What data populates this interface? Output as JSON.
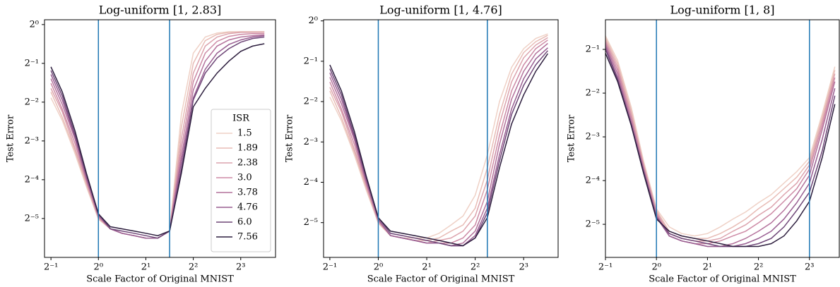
{
  "chart_data": [
    {
      "type": "line",
      "title": "Log-uniform [1, 2.83]",
      "xlabel": "Scale Factor of Original MNIST",
      "ylabel": "Test Error",
      "xscale": "log2",
      "yscale": "log2",
      "xlim": [
        0.455,
        13.3
      ],
      "ylim": [
        0.0156,
        1.09
      ],
      "xticks": [
        {
          "value": 0.5,
          "label": "2⁻¹"
        },
        {
          "value": 1,
          "label": "2⁰"
        },
        {
          "value": 2,
          "label": "2¹"
        },
        {
          "value": 4,
          "label": "2²"
        },
        {
          "value": 8,
          "label": "2³"
        }
      ],
      "yticks": [
        {
          "value": 1,
          "label": "2⁰"
        },
        {
          "value": 0.5,
          "label": "2⁻¹"
        },
        {
          "value": 0.25,
          "label": "2⁻²"
        },
        {
          "value": 0.125,
          "label": "2⁻³"
        },
        {
          "value": 0.0625,
          "label": "2⁻⁴"
        },
        {
          "value": 0.03125,
          "label": "2⁻⁵"
        }
      ],
      "vlines": [
        1,
        2.83
      ],
      "vline_color": "#1f77b4",
      "legend": {
        "title": "ISR",
        "loc": "center right"
      },
      "x": [
        0.5,
        0.59,
        0.71,
        0.84,
        1,
        1.19,
        1.41,
        1.68,
        2,
        2.38,
        2.83,
        3.36,
        4,
        4.76,
        5.66,
        6.73,
        8,
        9.51,
        11.3
      ],
      "series": [
        {
          "name": "1.5",
          "color": "#efd1c6",
          "values": [
            0.27,
            0.18,
            0.1,
            0.055,
            0.031,
            0.026,
            0.024,
            0.023,
            0.022,
            0.022,
            0.025,
            0.2,
            0.6,
            0.8,
            0.86,
            0.88,
            0.88,
            0.88,
            0.88
          ]
        },
        {
          "name": "1.89",
          "color": "#e8bcb6",
          "values": [
            0.3,
            0.19,
            0.105,
            0.057,
            0.031,
            0.026,
            0.024,
            0.023,
            0.022,
            0.022,
            0.025,
            0.16,
            0.5,
            0.75,
            0.84,
            0.87,
            0.88,
            0.88,
            0.88
          ]
        },
        {
          "name": "2.38",
          "color": "#dca3ad",
          "values": [
            0.32,
            0.21,
            0.11,
            0.059,
            0.032,
            0.026,
            0.024,
            0.023,
            0.022,
            0.022,
            0.025,
            0.13,
            0.42,
            0.68,
            0.8,
            0.85,
            0.87,
            0.87,
            0.87
          ]
        },
        {
          "name": "3.0",
          "color": "#cd8aa5",
          "values": [
            0.35,
            0.22,
            0.12,
            0.061,
            0.032,
            0.026,
            0.024,
            0.023,
            0.022,
            0.022,
            0.025,
            0.11,
            0.36,
            0.6,
            0.74,
            0.81,
            0.84,
            0.85,
            0.85
          ]
        },
        {
          "name": "3.78",
          "color": "#b4729c",
          "values": [
            0.38,
            0.24,
            0.13,
            0.063,
            0.033,
            0.026,
            0.024,
            0.023,
            0.022,
            0.022,
            0.025,
            0.095,
            0.31,
            0.52,
            0.68,
            0.76,
            0.8,
            0.82,
            0.83
          ]
        },
        {
          "name": "4.76",
          "color": "#985d91",
          "values": [
            0.41,
            0.26,
            0.135,
            0.065,
            0.033,
            0.026,
            0.024,
            0.023,
            0.022,
            0.022,
            0.025,
            0.085,
            0.27,
            0.45,
            0.6,
            0.7,
            0.76,
            0.8,
            0.82
          ]
        },
        {
          "name": "6.0",
          "color": "#6e4677",
          "values": [
            0.44,
            0.28,
            0.14,
            0.068,
            0.034,
            0.026,
            0.025,
            0.024,
            0.023,
            0.022,
            0.025,
            0.075,
            0.26,
            0.42,
            0.55,
            0.65,
            0.73,
            0.78,
            0.8
          ]
        },
        {
          "name": "7.56",
          "color": "#2d1e3e",
          "values": [
            0.47,
            0.3,
            0.15,
            0.07,
            0.034,
            0.027,
            0.026,
            0.025,
            0.024,
            0.023,
            0.025,
            0.07,
            0.23,
            0.32,
            0.42,
            0.52,
            0.62,
            0.68,
            0.71
          ]
        }
      ]
    },
    {
      "type": "line",
      "title": "Log-uniform [1, 4.76]",
      "xlabel": "Scale Factor of Original MNIST",
      "ylabel": "Test Error",
      "xscale": "log2",
      "yscale": "log2",
      "xlim": [
        0.457,
        13.1
      ],
      "ylim": [
        0.0172,
        1.02
      ],
      "xticks": [
        {
          "value": 0.5,
          "label": "2⁻¹"
        },
        {
          "value": 1,
          "label": "2⁰"
        },
        {
          "value": 2,
          "label": "2¹"
        },
        {
          "value": 4,
          "label": "2²"
        },
        {
          "value": 8,
          "label": "2³"
        }
      ],
      "yticks": [
        {
          "value": 1,
          "label": "2⁰"
        },
        {
          "value": 0.5,
          "label": "2⁻¹"
        },
        {
          "value": 0.25,
          "label": "2⁻²"
        },
        {
          "value": 0.125,
          "label": "2⁻³"
        },
        {
          "value": 0.0625,
          "label": "2⁻⁴"
        },
        {
          "value": 0.03125,
          "label": "2⁻⁵"
        }
      ],
      "vlines": [
        1,
        4.76
      ],
      "vline_color": "#1f77b4",
      "x": [
        0.5,
        0.59,
        0.71,
        0.84,
        1,
        1.19,
        1.41,
        1.68,
        2,
        2.38,
        2.83,
        3.36,
        4,
        4.76,
        5.66,
        6.73,
        8,
        9.51,
        11.3
      ],
      "series": [
        {
          "color": "#efd1c6",
          "values": [
            0.27,
            0.18,
            0.1,
            0.055,
            0.031,
            0.025,
            0.024,
            0.024,
            0.024,
            0.026,
            0.03,
            0.035,
            0.05,
            0.1,
            0.25,
            0.45,
            0.62,
            0.74,
            0.8
          ]
        },
        {
          "color": "#e8bcb6",
          "values": [
            0.3,
            0.19,
            0.105,
            0.057,
            0.031,
            0.025,
            0.024,
            0.023,
            0.023,
            0.024,
            0.027,
            0.03,
            0.04,
            0.08,
            0.2,
            0.4,
            0.58,
            0.7,
            0.78
          ]
        },
        {
          "color": "#dca3ad",
          "values": [
            0.32,
            0.21,
            0.11,
            0.059,
            0.032,
            0.025,
            0.024,
            0.023,
            0.022,
            0.023,
            0.024,
            0.027,
            0.035,
            0.065,
            0.17,
            0.35,
            0.53,
            0.66,
            0.75
          ]
        },
        {
          "color": "#cd8aa5",
          "values": [
            0.35,
            0.22,
            0.12,
            0.061,
            0.032,
            0.025,
            0.024,
            0.023,
            0.022,
            0.022,
            0.022,
            0.024,
            0.03,
            0.055,
            0.14,
            0.3,
            0.47,
            0.62,
            0.72
          ]
        },
        {
          "color": "#b4729c",
          "values": [
            0.38,
            0.24,
            0.13,
            0.063,
            0.033,
            0.025,
            0.024,
            0.023,
            0.022,
            0.022,
            0.021,
            0.022,
            0.027,
            0.045,
            0.12,
            0.26,
            0.42,
            0.57,
            0.68
          ]
        },
        {
          "color": "#985d91",
          "values": [
            0.41,
            0.26,
            0.135,
            0.065,
            0.033,
            0.025,
            0.024,
            0.023,
            0.022,
            0.022,
            0.021,
            0.021,
            0.025,
            0.04,
            0.1,
            0.22,
            0.37,
            0.52,
            0.63
          ]
        },
        {
          "color": "#6e4677",
          "values": [
            0.44,
            0.28,
            0.14,
            0.068,
            0.034,
            0.026,
            0.025,
            0.024,
            0.023,
            0.022,
            0.021,
            0.021,
            0.024,
            0.037,
            0.09,
            0.2,
            0.33,
            0.47,
            0.6
          ]
        },
        {
          "color": "#2d1e3e",
          "values": [
            0.47,
            0.3,
            0.15,
            0.07,
            0.034,
            0.027,
            0.026,
            0.025,
            0.024,
            0.023,
            0.022,
            0.021,
            0.024,
            0.034,
            0.08,
            0.17,
            0.28,
            0.42,
            0.57
          ]
        }
      ]
    },
    {
      "type": "line",
      "title": "Log-uniform [1, 8]",
      "xlabel": "Scale Factor of Original MNIST",
      "ylabel": "Test Error",
      "xscale": "log2",
      "yscale": "log2",
      "xlim": [
        0.5,
        12
      ],
      "ylim": [
        0.0185,
        0.8
      ],
      "xticks": [
        {
          "value": 0.5,
          "label": "2⁻¹"
        },
        {
          "value": 1,
          "label": "2⁰"
        },
        {
          "value": 2,
          "label": "2¹"
        },
        {
          "value": 4,
          "label": "2²"
        },
        {
          "value": 8,
          "label": "2³"
        }
      ],
      "yticks": [
        {
          "value": 0.5,
          "label": "2⁻¹"
        },
        {
          "value": 0.25,
          "label": "2⁻²"
        },
        {
          "value": 0.125,
          "label": "2⁻³"
        },
        {
          "value": 0.0625,
          "label": "2⁻⁴"
        },
        {
          "value": 0.03125,
          "label": "2⁻⁵"
        }
      ],
      "vlines": [
        1,
        8
      ],
      "vline_color": "#1f77b4",
      "x": [
        0.5,
        0.59,
        0.71,
        0.84,
        1,
        1.19,
        1.41,
        1.68,
        2,
        2.38,
        2.83,
        3.36,
        4,
        4.76,
        5.66,
        6.73,
        8,
        9.51,
        11.3
      ],
      "series": [
        {
          "color": "#efd1c6",
          "values": [
            0.62,
            0.42,
            0.2,
            0.085,
            0.04,
            0.03,
            0.027,
            0.026,
            0.027,
            0.03,
            0.034,
            0.038,
            0.044,
            0.05,
            0.06,
            0.072,
            0.09,
            0.18,
            0.38
          ]
        },
        {
          "color": "#e8bcb6",
          "values": [
            0.6,
            0.4,
            0.19,
            0.082,
            0.039,
            0.028,
            0.026,
            0.025,
            0.025,
            0.027,
            0.03,
            0.034,
            0.04,
            0.046,
            0.055,
            0.066,
            0.085,
            0.17,
            0.36
          ]
        },
        {
          "color": "#dca3ad",
          "values": [
            0.58,
            0.38,
            0.18,
            0.08,
            0.038,
            0.027,
            0.025,
            0.024,
            0.024,
            0.025,
            0.028,
            0.031,
            0.036,
            0.041,
            0.05,
            0.06,
            0.08,
            0.16,
            0.34
          ]
        },
        {
          "color": "#cd8aa5",
          "values": [
            0.56,
            0.36,
            0.17,
            0.078,
            0.037,
            0.026,
            0.024,
            0.023,
            0.023,
            0.024,
            0.026,
            0.028,
            0.032,
            0.037,
            0.045,
            0.055,
            0.075,
            0.15,
            0.32
          ]
        },
        {
          "color": "#b4729c",
          "values": [
            0.54,
            0.34,
            0.16,
            0.075,
            0.036,
            0.026,
            0.024,
            0.023,
            0.022,
            0.022,
            0.023,
            0.025,
            0.028,
            0.032,
            0.039,
            0.05,
            0.068,
            0.14,
            0.3
          ]
        },
        {
          "color": "#985d91",
          "values": [
            0.52,
            0.32,
            0.155,
            0.073,
            0.035,
            0.026,
            0.024,
            0.023,
            0.022,
            0.022,
            0.022,
            0.023,
            0.025,
            0.028,
            0.034,
            0.044,
            0.06,
            0.12,
            0.27
          ]
        },
        {
          "color": "#6e4677",
          "values": [
            0.5,
            0.31,
            0.15,
            0.072,
            0.035,
            0.027,
            0.025,
            0.024,
            0.023,
            0.022,
            0.022,
            0.022,
            0.023,
            0.025,
            0.03,
            0.039,
            0.052,
            0.1,
            0.24
          ]
        },
        {
          "color": "#2d1e3e",
          "values": [
            0.47,
            0.3,
            0.15,
            0.07,
            0.034,
            0.028,
            0.026,
            0.025,
            0.024,
            0.023,
            0.022,
            0.022,
            0.022,
            0.023,
            0.026,
            0.033,
            0.045,
            0.09,
            0.21
          ]
        }
      ]
    }
  ]
}
